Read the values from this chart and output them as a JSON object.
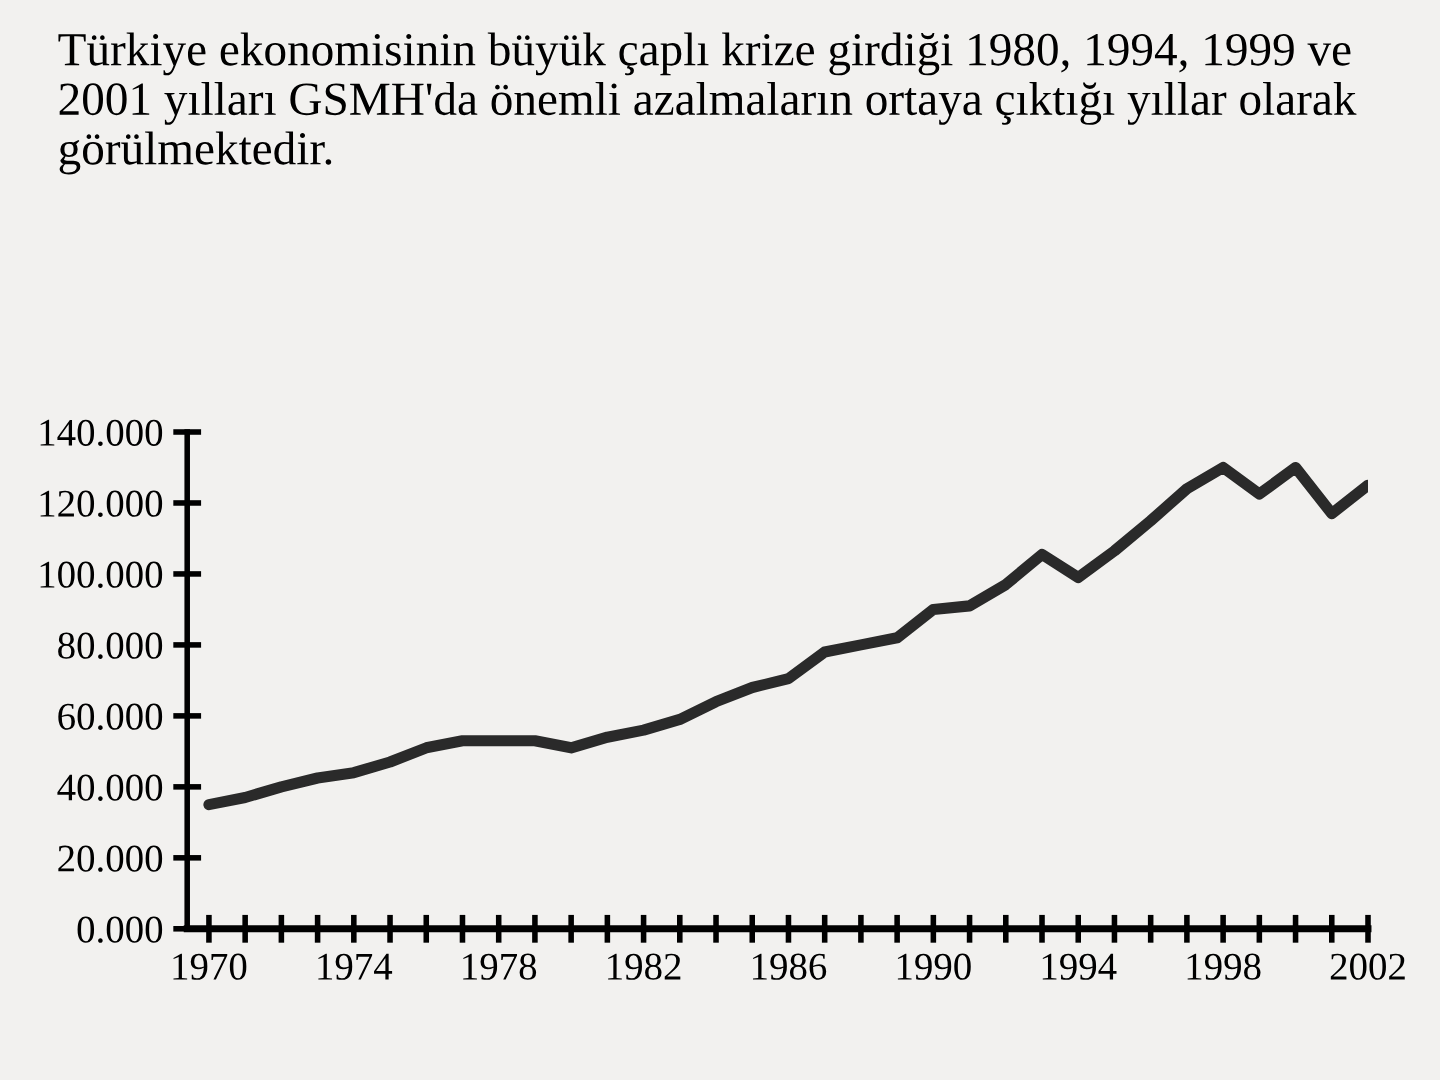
{
  "chart_data": {
    "type": "line",
    "title": "Türkiye ekonomisinin büyük çaplı krize girdiği 1980, 1994, 1999 ve 2001 yılları GSMH'da önemli azalmaların ortaya çıktığı yıllar olarak görülmektedir.",
    "x": [
      1970,
      1971,
      1972,
      1973,
      1974,
      1975,
      1976,
      1977,
      1978,
      1979,
      1980,
      1981,
      1982,
      1983,
      1984,
      1985,
      1986,
      1987,
      1988,
      1989,
      1990,
      1991,
      1992,
      1993,
      1994,
      1995,
      1996,
      1997,
      1998,
      1999,
      2000,
      2001,
      2002
    ],
    "series": [
      {
        "color": "#2a2a2a",
        "values": [
          35,
          37,
          40,
          42.5,
          44,
          47,
          51,
          53,
          53,
          53,
          51,
          54,
          56,
          59,
          64,
          68,
          70.5,
          78,
          80,
          82,
          90,
          91,
          97,
          105.5,
          99,
          106.5,
          115,
          124,
          130,
          122.5,
          130,
          117,
          125
        ]
      }
    ],
    "xlim": [
      1969.4,
      2002
    ],
    "xticks": [
      1970,
      {
        "value": 1971,
        "label": null
      },
      {
        "value": 1972,
        "label": null
      },
      {
        "value": 1973,
        "label": null
      },
      1974,
      {
        "value": 1975,
        "label": null
      },
      {
        "value": 1976,
        "label": null
      },
      {
        "value": 1977,
        "label": null
      },
      1978,
      {
        "value": 1979,
        "label": null
      },
      {
        "value": 1980,
        "label": null
      },
      {
        "value": 1981,
        "label": null
      },
      1982,
      {
        "value": 1983,
        "label": null
      },
      {
        "value": 1984,
        "label": null
      },
      {
        "value": 1985,
        "label": null
      },
      1986,
      {
        "value": 1987,
        "label": null
      },
      {
        "value": 1988,
        "label": null
      },
      {
        "value": 1989,
        "label": null
      },
      1990,
      {
        "value": 1991,
        "label": null
      },
      {
        "value": 1992,
        "label": null
      },
      {
        "value": 1993,
        "label": null
      },
      1994,
      {
        "value": 1995,
        "label": null
      },
      {
        "value": 1996,
        "label": null
      },
      {
        "value": 1997,
        "label": null
      },
      1998,
      {
        "value": 1999,
        "label": null
      },
      {
        "value": 2000,
        "label": null
      },
      {
        "value": 2001,
        "label": null
      },
      2002
    ],
    "ylim": [
      0,
      140
    ],
    "yticks": [
      {
        "value": 0,
        "label": "0.000"
      },
      {
        "value": 20,
        "label": "20.000"
      },
      {
        "value": 40,
        "label": "40.000"
      },
      {
        "value": 60,
        "label": "60.000"
      },
      {
        "value": 80,
        "label": "80.000"
      },
      {
        "value": 100,
        "label": "100.000"
      },
      {
        "value": 120,
        "label": "120.000"
      },
      {
        "value": 140,
        "label": "140.000"
      }
    ],
    "grid": false,
    "legend": false,
    "marker": "none",
    "line_style": "solid"
  }
}
